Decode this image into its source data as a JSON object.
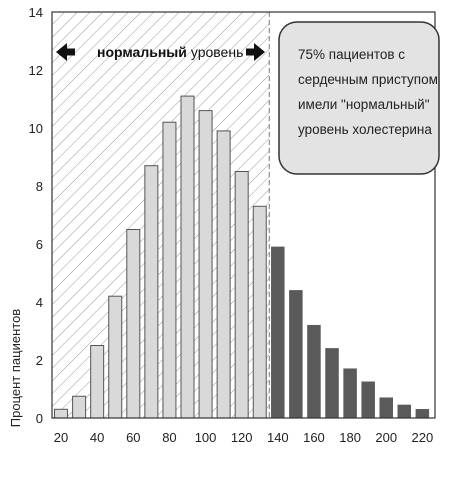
{
  "chart_data": {
    "type": "bar",
    "title": "",
    "xlabel": "",
    "ylabel": "Процент пациентов",
    "ylim": [
      0,
      14
    ],
    "y_ticks": [
      "0",
      "2",
      "4",
      "6",
      "8",
      "10",
      "12",
      "14"
    ],
    "x_ticks": [
      "20",
      "40",
      "60",
      "80",
      "100",
      "120",
      "140",
      "160",
      "180",
      "200",
      "220"
    ],
    "x": [
      20,
      30,
      40,
      50,
      60,
      70,
      80,
      90,
      100,
      110,
      120,
      130,
      140,
      150,
      160,
      170,
      180,
      190,
      200,
      210,
      220
    ],
    "values": [
      0.3,
      0.75,
      2.5,
      4.2,
      6.5,
      8.7,
      10.2,
      11.1,
      10.6,
      9.9,
      8.5,
      7.3,
      5.9,
      4.4,
      3.2,
      2.4,
      1.7,
      1.25,
      0.7,
      0.45,
      0.3
    ],
    "normal_range_max": 130,
    "grid": false,
    "colors": {
      "normal_bar": "#d9d9d9",
      "high_bar": "#5a5a5a",
      "bar_stroke": "#555555",
      "hatch": "#9a9a9a",
      "callout_fill": "#e3e3e3"
    }
  },
  "annotation": {
    "normal_bold": "нормальный",
    "normal_rest": "уровень",
    "left_arrow_icon": "arrow-left-icon",
    "right_arrow_icon": "arrow-right-icon"
  },
  "callout": {
    "lines": [
      "75% пациентов с",
      "сердечным приступом",
      "имели \"нормальный\"",
      "уровень холестерина"
    ]
  }
}
